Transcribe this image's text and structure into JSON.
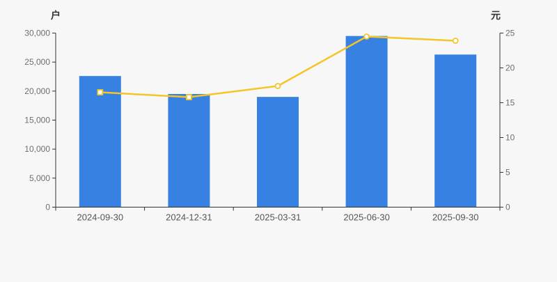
{
  "chart_data": {
    "type": "bar+line dual-axis",
    "title": "",
    "categories": [
      "2024-09-30",
      "2024-12-31",
      "2025-03-31",
      "2025-06-30",
      "2025-09-30"
    ],
    "series": [
      {
        "name": "bar-series",
        "type": "bar",
        "axis": "left",
        "values": [
          22600,
          19500,
          19000,
          29500,
          26300
        ],
        "color": "#3781e3"
      },
      {
        "name": "line-series",
        "type": "line",
        "axis": "right",
        "values": [
          16.5,
          15.8,
          17.4,
          24.5,
          23.9
        ],
        "color": "#f5c429",
        "marker_fill": "#ffffff",
        "marker_shapes": [
          "square",
          "square",
          "circle",
          "circle",
          "circle"
        ]
      }
    ],
    "left_axis": {
      "label": "户",
      "min": 0,
      "max": 30000,
      "step": 5000,
      "ticks": [
        "0",
        "5,000",
        "10,000",
        "15,000",
        "20,000",
        "25,000",
        "30,000"
      ]
    },
    "right_axis": {
      "label": "元",
      "min": 0,
      "max": 25,
      "step": 5,
      "ticks": [
        "0",
        "5",
        "10",
        "15",
        "20",
        "25"
      ]
    },
    "grid": false,
    "legend": null,
    "colors": {
      "background": "#f7f7f7",
      "axis_line": "#333333",
      "y_tick_label": "#6e6e6e",
      "x_tick_label": "#555555",
      "axis_unit_label": "#333333"
    }
  }
}
